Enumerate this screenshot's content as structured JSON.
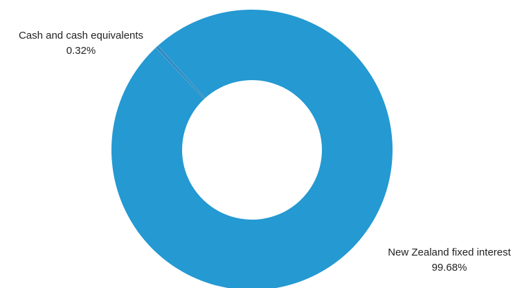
{
  "chart_data": {
    "type": "pie",
    "variant": "donut",
    "title": "",
    "slices": [
      {
        "label": "Cash and cash equivalents",
        "value": 0.32,
        "value_label": "0.32%",
        "color": "#2E86C1"
      },
      {
        "label": "New Zealand fixed interest",
        "value": 99.68,
        "value_label": "99.68%",
        "color": "#2499D2"
      }
    ],
    "slice_separator_color": "#5AA7CF",
    "legend": "none"
  }
}
